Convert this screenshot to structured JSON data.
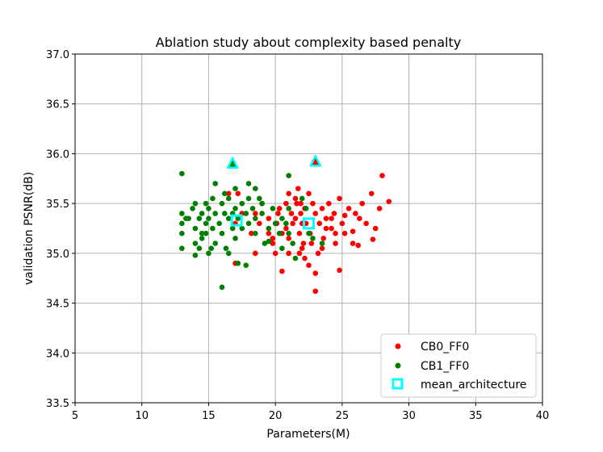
{
  "chart_data": {
    "type": "scatter",
    "title": "Ablation study about complexity based penalty",
    "xlabel": "Parameters(M)",
    "ylabel": "validation PSNR(dB)",
    "xlim": [
      5,
      40
    ],
    "ylim": [
      33.5,
      37.0
    ],
    "grid": true,
    "legend_position": "lower-right",
    "x_ticks": [
      5,
      10,
      15,
      20,
      25,
      30,
      35,
      40
    ],
    "y_ticks": [
      33.5,
      34.0,
      34.5,
      35.0,
      35.5,
      36.0,
      36.5,
      37.0
    ],
    "x_tick_labels": [
      "5",
      "10",
      "15",
      "20",
      "25",
      "30",
      "35",
      "40"
    ],
    "y_tick_labels": [
      "33.5",
      "34.0",
      "34.5",
      "35.0",
      "35.5",
      "36.0",
      "36.5",
      "37.0"
    ],
    "series": [
      {
        "name": "CB0_FF0",
        "color": "#ff0000",
        "marker": "circle",
        "points": [
          [
            17.0,
            35.3
          ],
          [
            17.2,
            35.6
          ],
          [
            16.5,
            35.6
          ],
          [
            17.5,
            35.4
          ],
          [
            18.2,
            35.2
          ],
          [
            18.5,
            35.4
          ],
          [
            19.0,
            35.5
          ],
          [
            19.5,
            35.2
          ],
          [
            19.8,
            35.1
          ],
          [
            20.1,
            35.3
          ],
          [
            20.3,
            35.45
          ],
          [
            20.5,
            35.2
          ],
          [
            20.8,
            35.5
          ],
          [
            21.0,
            35.6
          ],
          [
            21.2,
            35.4
          ],
          [
            21.3,
            35.3
          ],
          [
            21.5,
            35.55
          ],
          [
            21.6,
            35.5
          ],
          [
            21.7,
            35.65
          ],
          [
            21.8,
            35.2
          ],
          [
            21.9,
            35.4
          ],
          [
            22.0,
            35.3
          ],
          [
            22.1,
            35.1
          ],
          [
            22.2,
            35.45
          ],
          [
            22.3,
            35.3
          ],
          [
            22.5,
            35.6
          ],
          [
            22.6,
            35.2
          ],
          [
            22.8,
            35.5
          ],
          [
            23.0,
            35.4
          ],
          [
            23.2,
            35.0
          ],
          [
            23.3,
            35.3
          ],
          [
            23.5,
            35.45
          ],
          [
            23.6,
            35.15
          ],
          [
            23.8,
            35.35
          ],
          [
            24.0,
            35.5
          ],
          [
            24.2,
            35.25
          ],
          [
            24.4,
            35.4
          ],
          [
            24.5,
            35.1
          ],
          [
            24.8,
            35.55
          ],
          [
            25.0,
            35.3
          ],
          [
            25.2,
            35.2
          ],
          [
            25.5,
            35.45
          ],
          [
            25.8,
            35.1
          ],
          [
            26.0,
            35.4
          ],
          [
            26.3,
            35.35
          ],
          [
            26.5,
            35.5
          ],
          [
            26.8,
            35.3
          ],
          [
            27.2,
            35.6
          ],
          [
            27.5,
            35.25
          ],
          [
            27.8,
            35.45
          ],
          [
            28.0,
            35.78
          ],
          [
            28.5,
            35.52
          ],
          [
            27.3,
            35.14
          ],
          [
            26.2,
            35.08
          ],
          [
            24.8,
            34.83
          ],
          [
            23.0,
            34.62
          ],
          [
            20.5,
            34.82
          ],
          [
            22.5,
            34.88
          ],
          [
            21.8,
            35.0
          ],
          [
            20.0,
            35.0
          ],
          [
            19.8,
            35.15
          ],
          [
            21.0,
            35.15
          ],
          [
            22.0,
            35.05
          ],
          [
            23.5,
            35.05
          ],
          [
            24.5,
            35.2
          ],
          [
            25.2,
            35.38
          ],
          [
            21.5,
            35.35
          ],
          [
            20.8,
            35.25
          ],
          [
            19.5,
            35.35
          ],
          [
            18.8,
            35.3
          ],
          [
            22.7,
            35.1
          ],
          [
            23.8,
            35.25
          ],
          [
            21.9,
            35.5
          ],
          [
            20.2,
            35.4
          ],
          [
            21.0,
            35.0
          ],
          [
            22.2,
            34.95
          ],
          [
            23.0,
            34.8
          ],
          [
            18.5,
            35.0
          ],
          [
            17.0,
            34.9
          ],
          [
            24.2,
            35.35
          ],
          [
            25.8,
            35.22
          ],
          [
            22.9,
            35.92
          ]
        ]
      },
      {
        "name": "CB1_FF0",
        "color": "#008000",
        "marker": "circle",
        "points": [
          [
            13.0,
            35.8
          ],
          [
            13.0,
            35.4
          ],
          [
            13.0,
            35.3
          ],
          [
            13.0,
            35.2
          ],
          [
            13.0,
            35.05
          ],
          [
            13.5,
            35.35
          ],
          [
            13.8,
            35.45
          ],
          [
            14.0,
            35.5
          ],
          [
            14.0,
            35.25
          ],
          [
            14.0,
            35.1
          ],
          [
            14.0,
            34.98
          ],
          [
            14.3,
            35.35
          ],
          [
            14.5,
            35.15
          ],
          [
            14.5,
            35.4
          ],
          [
            14.8,
            35.5
          ],
          [
            14.8,
            35.3
          ],
          [
            14.8,
            35.2
          ],
          [
            15.0,
            35.45
          ],
          [
            15.0,
            35.0
          ],
          [
            15.0,
            35.35
          ],
          [
            15.3,
            35.55
          ],
          [
            15.3,
            35.25
          ],
          [
            15.5,
            35.4
          ],
          [
            15.5,
            35.1
          ],
          [
            15.5,
            35.7
          ],
          [
            15.8,
            35.3
          ],
          [
            16.0,
            35.5
          ],
          [
            16.0,
            35.2
          ],
          [
            16.2,
            35.4
          ],
          [
            16.3,
            35.05
          ],
          [
            16.5,
            35.35
          ],
          [
            16.5,
            35.55
          ],
          [
            16.8,
            35.25
          ],
          [
            17.0,
            35.45
          ],
          [
            17.0,
            35.15
          ],
          [
            17.2,
            35.35
          ],
          [
            17.5,
            35.25
          ],
          [
            17.5,
            35.5
          ],
          [
            17.8,
            35.4
          ],
          [
            18.0,
            35.3
          ],
          [
            18.0,
            35.55
          ],
          [
            18.0,
            35.7
          ],
          [
            18.3,
            35.45
          ],
          [
            18.5,
            35.35
          ],
          [
            18.5,
            35.2
          ],
          [
            18.8,
            35.55
          ],
          [
            19.0,
            35.4
          ],
          [
            19.2,
            35.1
          ],
          [
            19.5,
            35.25
          ],
          [
            19.8,
            35.45
          ],
          [
            20.0,
            35.3
          ],
          [
            20.3,
            35.2
          ],
          [
            20.5,
            35.05
          ],
          [
            20.8,
            35.3
          ],
          [
            21.0,
            35.45
          ],
          [
            21.0,
            35.2
          ],
          [
            21.0,
            35.78
          ],
          [
            21.3,
            35.1
          ],
          [
            21.5,
            34.95
          ],
          [
            22.0,
            35.55
          ],
          [
            22.5,
            35.2
          ],
          [
            22.8,
            35.15
          ],
          [
            23.5,
            35.1
          ],
          [
            16.0,
            34.66
          ],
          [
            17.2,
            34.9
          ],
          [
            17.8,
            34.88
          ],
          [
            17.0,
            35.65
          ],
          [
            16.2,
            35.6
          ],
          [
            14.5,
            35.2
          ],
          [
            18.5,
            35.65
          ],
          [
            15.2,
            35.05
          ],
          [
            16.8,
            35.4
          ],
          [
            19.0,
            35.5
          ],
          [
            20.5,
            35.35
          ],
          [
            13.3,
            35.35
          ],
          [
            14.3,
            35.05
          ],
          [
            16.5,
            35.0
          ],
          [
            19.5,
            35.12
          ],
          [
            22.3,
            35.45
          ],
          [
            16.8,
            35.9
          ]
        ]
      },
      {
        "name": "mean_architecture",
        "color": "#00ffff",
        "marker": "square-hollow",
        "points": [
          [
            17.1,
            35.33
          ],
          [
            22.5,
            35.3
          ]
        ]
      }
    ],
    "highlight_triangles": [
      {
        "x": 16.8,
        "y": 35.9,
        "fill": "#008000",
        "edge": "#00ffff"
      },
      {
        "x": 23.0,
        "y": 35.92,
        "fill": "#ff0000",
        "edge": "#00ffff"
      }
    ],
    "legend": [
      {
        "label": "CB0_FF0",
        "marker": "circle",
        "color": "#ff0000"
      },
      {
        "label": "CB1_FF0",
        "marker": "circle",
        "color": "#008000"
      },
      {
        "label": "mean_architecture",
        "marker": "square-hollow",
        "color": "#00ffff"
      }
    ]
  }
}
